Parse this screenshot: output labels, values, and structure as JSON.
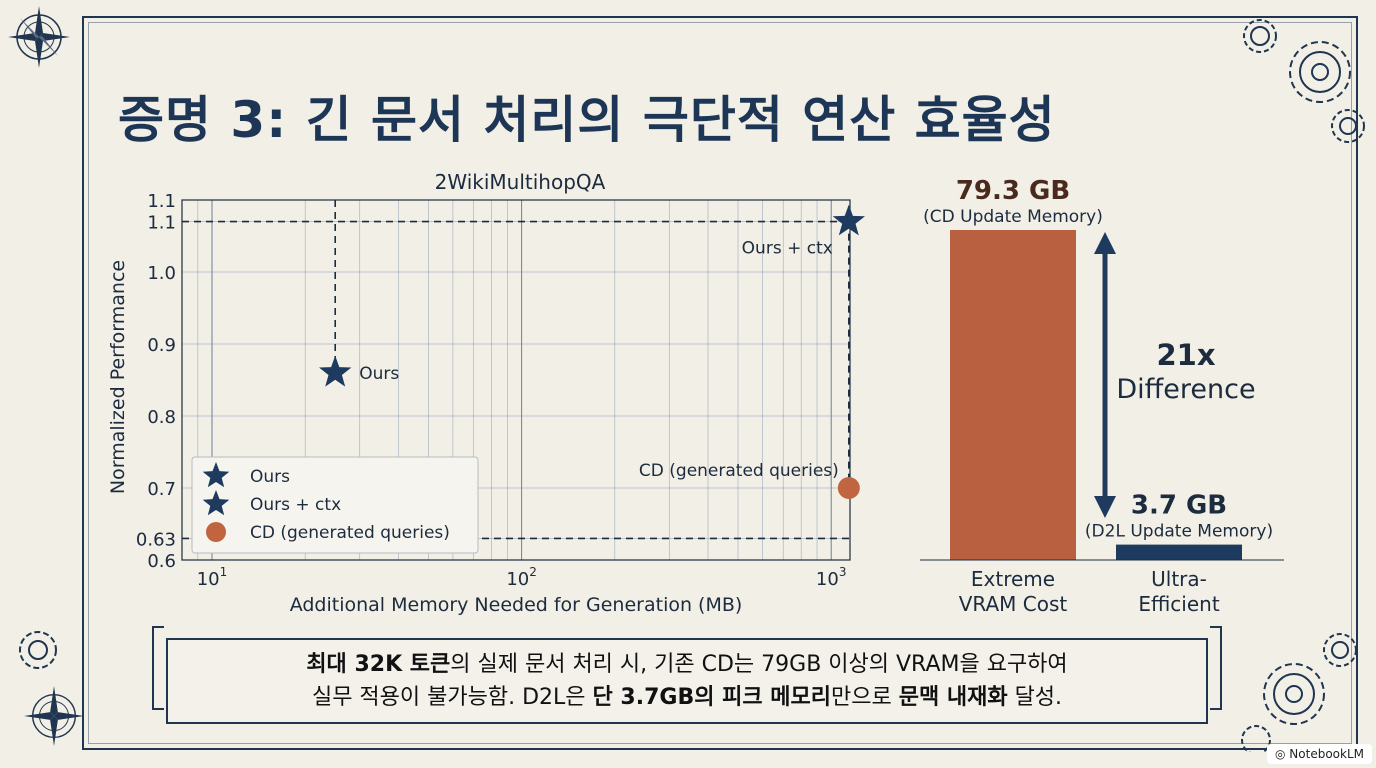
{
  "slide": {
    "title": "증명 3: 긴 문서 처리의 극단적 연산 효율성",
    "watermark": "NotebookLM",
    "callout": {
      "line1": [
        {
          "text": "최대 32K 토큰",
          "bold": true
        },
        {
          "text": "의 실제 문서 처리 시, 기존 CD는 79GB 이상의 VRAM을 요구하여",
          "bold": false
        }
      ],
      "line2": [
        {
          "text": "실무 적용이 불가능함. D2L은 ",
          "bold": false
        },
        {
          "text": "단 3.7GB의 피크 메모리",
          "bold": true
        },
        {
          "text": "만으로 ",
          "bold": false
        },
        {
          "text": "문맥 내재화",
          "bold": true
        },
        {
          "text": " 달성.",
          "bold": false
        }
      ]
    }
  },
  "chart_data": [
    {
      "type": "scatter",
      "title": "2WikiMultihopQA",
      "xlabel": "Additional Memory Needed for Generation (MB)",
      "ylabel": "Normalized Performance",
      "xscale": "log",
      "xlim": [
        8,
        1150
      ],
      "ylim": [
        0.6,
        1.1
      ],
      "x_ticks": [
        10,
        100,
        1000
      ],
      "x_tick_labels": [
        "10",
        "10",
        "10"
      ],
      "x_tick_exponents": [
        "1",
        "2",
        "3"
      ],
      "y_ticks": [
        0.6,
        0.63,
        0.7,
        0.8,
        0.9,
        1.0,
        1.07,
        1.1
      ],
      "y_tick_labels": [
        "0.6",
        "0.63",
        "0.7",
        "0.8",
        "0.9",
        "1.0",
        "1.1",
        "1.1"
      ],
      "grid": true,
      "legend_position": "lower-left",
      "series": [
        {
          "name": "Ours",
          "marker": "star",
          "color": "#1f3a5f",
          "x": 25,
          "y": 0.86,
          "label": "Ours"
        },
        {
          "name": "Ours + ctx",
          "marker": "star",
          "color": "#1f3a5f",
          "x": 1140,
          "y": 1.07,
          "label": "Ours + ctx"
        },
        {
          "name": "CD (generated queries)",
          "marker": "circle",
          "color": "#c0653f",
          "x": 1140,
          "y": 0.7,
          "label": "CD (generated queries)"
        }
      ],
      "reference_lines": {
        "horizontal": [
          1.07,
          0.63
        ],
        "vertical_x": [
          25,
          1140
        ]
      }
    },
    {
      "type": "bar",
      "categories": [
        "Extreme\nVRAM Cost",
        "Ultra-\nEfficient"
      ],
      "category_lines": [
        [
          "Extreme",
          "VRAM Cost"
        ],
        [
          "Ultra-",
          "Efficient"
        ]
      ],
      "values": [
        79.3,
        3.7
      ],
      "unit": "GB",
      "colors": [
        "#b8603f",
        "#1f3a5f"
      ],
      "value_labels": [
        "79.3 GB",
        "3.7 GB"
      ],
      "sub_labels": [
        "(CD Update Memory)",
        "(D2L Update Memory)"
      ],
      "annotation": {
        "line1": "21x",
        "line2": "Difference"
      }
    }
  ]
}
